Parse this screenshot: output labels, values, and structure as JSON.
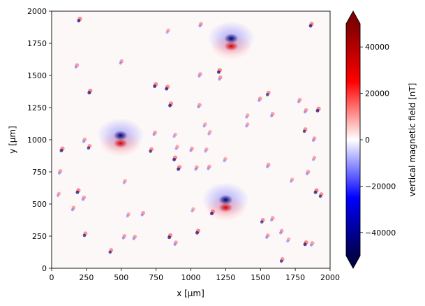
{
  "chart_data": {
    "type": "heatmap",
    "xlabel": "x [µm]",
    "ylabel": "y [µm]",
    "xlim": [
      0,
      2000
    ],
    "ylim": [
      0,
      2000
    ],
    "x_ticks": [
      0,
      250,
      500,
      750,
      1000,
      1250,
      1500,
      1750,
      2000
    ],
    "y_ticks": [
      0,
      250,
      500,
      750,
      1000,
      1250,
      1500,
      1750,
      2000
    ],
    "colorbar": {
      "label": "vertical magnetic field [nT]",
      "range": [
        -50000,
        50000
      ],
      "ticks": [
        -40000,
        -20000,
        0,
        20000,
        40000
      ],
      "tick_labels": [
        "−40000",
        "−20000",
        "0",
        "20000",
        "40000"
      ],
      "colormap": "seismic",
      "extend": "both"
    },
    "large_dipoles": [
      {
        "x": 1290,
        "y": 1760,
        "strength": 1.0
      },
      {
        "x": 495,
        "y": 1005,
        "strength": 1.0
      },
      {
        "x": 1250,
        "y": 505,
        "strength": 1.0
      }
    ],
    "small_dipoles": [
      {
        "x": 195,
        "y": 1930,
        "strength": 0.6
      },
      {
        "x": 1860,
        "y": 1890,
        "strength": 0.6
      },
      {
        "x": 1065,
        "y": 1890,
        "strength": 0.4
      },
      {
        "x": 830,
        "y": 1840,
        "strength": 0.3
      },
      {
        "x": 495,
        "y": 1600,
        "strength": 0.4
      },
      {
        "x": 175,
        "y": 1570,
        "strength": 0.4
      },
      {
        "x": 1200,
        "y": 1530,
        "strength": 0.6
      },
      {
        "x": 1060,
        "y": 1500,
        "strength": 0.4
      },
      {
        "x": 1205,
        "y": 1475,
        "strength": 0.4
      },
      {
        "x": 740,
        "y": 1420,
        "strength": 0.6
      },
      {
        "x": 825,
        "y": 1400,
        "strength": 0.6
      },
      {
        "x": 270,
        "y": 1370,
        "strength": 0.6
      },
      {
        "x": 1550,
        "y": 1355,
        "strength": 0.5
      },
      {
        "x": 1490,
        "y": 1310,
        "strength": 0.4
      },
      {
        "x": 1775,
        "y": 1300,
        "strength": 0.4
      },
      {
        "x": 850,
        "y": 1270,
        "strength": 0.6
      },
      {
        "x": 1055,
        "y": 1260,
        "strength": 0.4
      },
      {
        "x": 1910,
        "y": 1230,
        "strength": 0.6
      },
      {
        "x": 1820,
        "y": 1220,
        "strength": 0.4
      },
      {
        "x": 1580,
        "y": 1190,
        "strength": 0.4
      },
      {
        "x": 1400,
        "y": 1180,
        "strength": 0.3
      },
      {
        "x": 1095,
        "y": 1110,
        "strength": 0.3
      },
      {
        "x": 1400,
        "y": 1110,
        "strength": 0.3
      },
      {
        "x": 1815,
        "y": 1070,
        "strength": 0.5
      },
      {
        "x": 735,
        "y": 1045,
        "strength": 0.4
      },
      {
        "x": 880,
        "y": 1030,
        "strength": 0.3
      },
      {
        "x": 1130,
        "y": 1050,
        "strength": 0.3
      },
      {
        "x": 230,
        "y": 990,
        "strength": 0.4
      },
      {
        "x": 1880,
        "y": 1000,
        "strength": 0.4
      },
      {
        "x": 265,
        "y": 940,
        "strength": 0.5
      },
      {
        "x": 895,
        "y": 935,
        "strength": 0.3
      },
      {
        "x": 710,
        "y": 915,
        "strength": 0.5
      },
      {
        "x": 70,
        "y": 920,
        "strength": 0.6
      },
      {
        "x": 1000,
        "y": 920,
        "strength": 0.4
      },
      {
        "x": 1105,
        "y": 915,
        "strength": 0.3
      },
      {
        "x": 880,
        "y": 850,
        "strength": 0.6
      },
      {
        "x": 1240,
        "y": 840,
        "strength": 0.3
      },
      {
        "x": 1880,
        "y": 850,
        "strength": 0.3
      },
      {
        "x": 1550,
        "y": 795,
        "strength": 0.4
      },
      {
        "x": 910,
        "y": 775,
        "strength": 0.6
      },
      {
        "x": 1035,
        "y": 775,
        "strength": 0.4
      },
      {
        "x": 1125,
        "y": 780,
        "strength": 0.4
      },
      {
        "x": 55,
        "y": 745,
        "strength": 0.4
      },
      {
        "x": 1835,
        "y": 740,
        "strength": 0.4
      },
      {
        "x": 520,
        "y": 670,
        "strength": 0.3
      },
      {
        "x": 1720,
        "y": 680,
        "strength": 0.3
      },
      {
        "x": 185,
        "y": 595,
        "strength": 0.6
      },
      {
        "x": 1895,
        "y": 595,
        "strength": 0.6
      },
      {
        "x": 1930,
        "y": 565,
        "strength": 0.5
      },
      {
        "x": 225,
        "y": 540,
        "strength": 0.4
      },
      {
        "x": 45,
        "y": 570,
        "strength": 0.3
      },
      {
        "x": 150,
        "y": 460,
        "strength": 0.4
      },
      {
        "x": 1150,
        "y": 430,
        "strength": 0.6
      },
      {
        "x": 1010,
        "y": 450,
        "strength": 0.3
      },
      {
        "x": 650,
        "y": 420,
        "strength": 0.4
      },
      {
        "x": 545,
        "y": 410,
        "strength": 0.3
      },
      {
        "x": 1510,
        "y": 365,
        "strength": 0.5
      },
      {
        "x": 1580,
        "y": 380,
        "strength": 0.4
      },
      {
        "x": 1045,
        "y": 280,
        "strength": 0.6
      },
      {
        "x": 1645,
        "y": 280,
        "strength": 0.4
      },
      {
        "x": 235,
        "y": 260,
        "strength": 0.5
      },
      {
        "x": 1545,
        "y": 245,
        "strength": 0.4
      },
      {
        "x": 845,
        "y": 245,
        "strength": 0.6
      },
      {
        "x": 515,
        "y": 240,
        "strength": 0.4
      },
      {
        "x": 590,
        "y": 235,
        "strength": 0.4
      },
      {
        "x": 1695,
        "y": 215,
        "strength": 0.3
      },
      {
        "x": 1820,
        "y": 190,
        "strength": 0.6
      },
      {
        "x": 885,
        "y": 190,
        "strength": 0.4
      },
      {
        "x": 1865,
        "y": 185,
        "strength": 0.4
      },
      {
        "x": 420,
        "y": 130,
        "strength": 0.5
      },
      {
        "x": 1650,
        "y": 60,
        "strength": 0.5
      }
    ]
  }
}
